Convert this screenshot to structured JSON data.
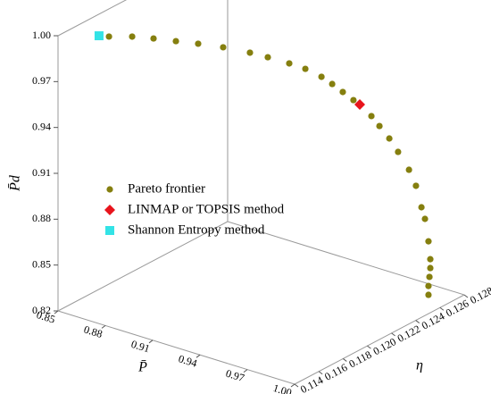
{
  "chart_data": {
    "type": "scatter3d",
    "xlabel": "P̄",
    "ylabel": "η",
    "zlabel": "P̄d",
    "xlim": [
      0.85,
      1.0
    ],
    "ylim": [
      0.114,
      0.128
    ],
    "zlim": [
      0.82,
      1.0
    ],
    "xticks": [
      0.85,
      0.88,
      0.91,
      0.94,
      0.97,
      {
        "value": 1.0,
        "label": "1.00"
      }
    ],
    "yticks": [
      0.114,
      0.116,
      0.118,
      {
        "value": 0.12,
        "label": "0.120"
      },
      0.122,
      0.124,
      0.126,
      0.128
    ],
    "zticks": [
      0.82,
      0.85,
      0.88,
      0.91,
      0.94,
      0.97,
      {
        "value": 1.0,
        "label": "1.00"
      }
    ],
    "series": [
      {
        "name": "Pareto frontier",
        "color": "#857f0f",
        "marker": "circle",
        "x": [
          0.8664,
          0.8704,
          0.8791,
          0.8879,
          0.8977,
          0.9062,
          0.9166,
          0.9279,
          0.935,
          0.9436,
          0.9495,
          0.9562,
          0.9613,
          0.9658,
          0.9704,
          0.9728,
          0.9781,
          0.9819,
          0.986,
          0.9904,
          0.9944,
          0.9966,
          1.0,
          1.0,
          1.0,
          1.0,
          1.0,
          1.0,
          1.0,
          1.0
        ],
        "y": [
          0.11525,
          0.11555,
          0.11633,
          0.11695,
          0.11752,
          0.11825,
          0.11896,
          0.1197,
          0.12025,
          0.1209,
          0.12146,
          0.12192,
          0.12214,
          0.12243,
          0.12271,
          0.12292,
          0.12319,
          0.12336,
          0.12364,
          0.12379,
          0.12417,
          0.12446,
          0.12447,
          0.12476,
          0.12505,
          0.1252,
          0.1252,
          0.12513,
          0.12505,
          0.12505
        ],
        "z": [
          1.0,
          0.9995,
          0.999,
          0.998,
          0.997,
          0.995,
          0.993,
          0.99,
          0.987,
          0.983,
          0.979,
          0.974,
          0.97,
          0.965,
          0.96,
          0.957,
          0.95,
          0.944,
          0.936,
          0.928,
          0.916,
          0.905,
          0.892,
          0.8832,
          0.8673,
          0.855,
          0.8492,
          0.8437,
          0.8381,
          0.8323
        ]
      },
      {
        "name": "LINMAP or TOPSIS method",
        "color": "#e8141c",
        "marker": "diamond",
        "x": [
          0.9728
        ],
        "y": [
          0.12292
        ],
        "z": [
          0.957
        ]
      },
      {
        "name": "Shannon Entropy method",
        "color": "#33e3e6",
        "marker": "square",
        "x": [
          0.8664
        ],
        "y": [
          0.11525
        ],
        "z": [
          1.0
        ]
      }
    ]
  }
}
